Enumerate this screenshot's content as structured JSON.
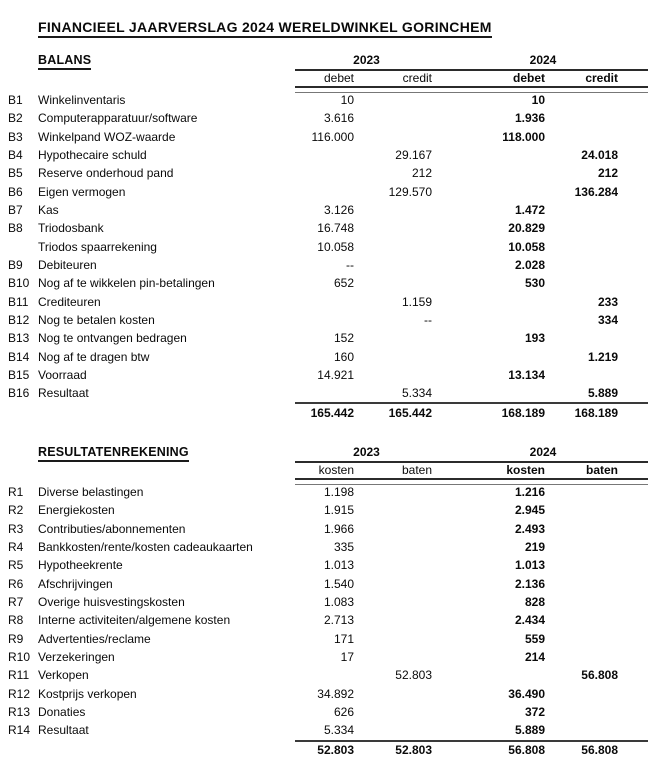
{
  "title": "FINANCIEEL JAARVERSLAG 2024 WERELDWINKEL GORINCHEM",
  "balans": {
    "heading": "BALANS",
    "years": [
      "2023",
      "2024"
    ],
    "col_headers": [
      "debet",
      "credit",
      "debet",
      "credit"
    ],
    "rows": [
      [
        "B1",
        "Winkelinventaris",
        "10",
        "",
        "10",
        ""
      ],
      [
        "B2",
        "Computerapparatuur/software",
        "3.616",
        "",
        "1.936",
        ""
      ],
      [
        "B3",
        "Winkelpand WOZ-waarde",
        "116.000",
        "",
        "118.000",
        ""
      ],
      [
        "B4",
        "Hypothecaire schuld",
        "",
        "29.167",
        "",
        "24.018"
      ],
      [
        "B5",
        "Reserve onderhoud pand",
        "",
        "212",
        "",
        "212"
      ],
      [
        "B6",
        "Eigen vermogen",
        "",
        "129.570",
        "",
        "136.284"
      ],
      [
        "B7",
        "Kas",
        "3.126",
        "",
        "1.472",
        ""
      ],
      [
        "B8",
        "Triodosbank",
        "16.748",
        "",
        "20.829",
        ""
      ],
      [
        "",
        "Triodos spaarrekening",
        "10.058",
        "",
        "10.058",
        ""
      ],
      [
        "B9",
        "Debiteuren",
        "--",
        "",
        "2.028",
        ""
      ],
      [
        "B10",
        "Nog af te wikkelen pin-betalingen",
        "652",
        "",
        "530",
        ""
      ],
      [
        "B11",
        "Crediteuren",
        "",
        "1.159",
        "",
        "233"
      ],
      [
        "B12",
        "Nog te betalen kosten",
        "",
        "--",
        "",
        "334"
      ],
      [
        "B13",
        "Nog te ontvangen bedragen",
        "152",
        "",
        "193",
        ""
      ],
      [
        "B14",
        "Nog af te dragen btw",
        "160",
        "",
        "",
        "1.219"
      ],
      [
        "B15",
        "Voorraad",
        "14.921",
        "",
        "13.134",
        ""
      ],
      [
        "B16",
        "Resultaat",
        "",
        "5.334",
        "",
        "5.889"
      ]
    ],
    "totals": [
      "165.442",
      "165.442",
      "168.189",
      "168.189"
    ]
  },
  "resultatenrekening": {
    "heading": "RESULTATENREKENING",
    "years": [
      "2023",
      "2024"
    ],
    "col_headers": [
      "kosten",
      "baten",
      "kosten",
      "baten"
    ],
    "rows": [
      [
        "R1",
        "Diverse belastingen",
        "1.198",
        "",
        "1.216",
        ""
      ],
      [
        "R2",
        "Energiekosten",
        "1.915",
        "",
        "2.945",
        ""
      ],
      [
        "R3",
        "Contributies/abonnementen",
        "1.966",
        "",
        "2.493",
        ""
      ],
      [
        "R4",
        "Bankkosten/rente/kosten cadeaukaarten",
        "335",
        "",
        "219",
        ""
      ],
      [
        "R5",
        "Hypotheekrente",
        "1.013",
        "",
        "1.013",
        ""
      ],
      [
        "R6",
        "Afschrijvingen",
        "1.540",
        "",
        "2.136",
        ""
      ],
      [
        "R7",
        "Overige huisvestingskosten",
        "1.083",
        "",
        "828",
        ""
      ],
      [
        "R8",
        "Interne activiteiten/algemene kosten",
        "2.713",
        "",
        "2.434",
        ""
      ],
      [
        "R9",
        "Advertenties/reclame",
        "171",
        "",
        "559",
        ""
      ],
      [
        "R10",
        "Verzekeringen",
        "17",
        "",
        "214",
        ""
      ],
      [
        "R11",
        "Verkopen",
        "",
        "52.803",
        "",
        "56.808"
      ],
      [
        "R12",
        "Kostprijs verkopen",
        "34.892",
        "",
        "36.490",
        ""
      ],
      [
        "R13",
        "Donaties",
        "626",
        "",
        "372",
        ""
      ],
      [
        "R14",
        "Resultaat",
        "5.334",
        "",
        "5.889",
        ""
      ]
    ],
    "totals": [
      "52.803",
      "52.803",
      "56.808",
      "56.808"
    ]
  }
}
